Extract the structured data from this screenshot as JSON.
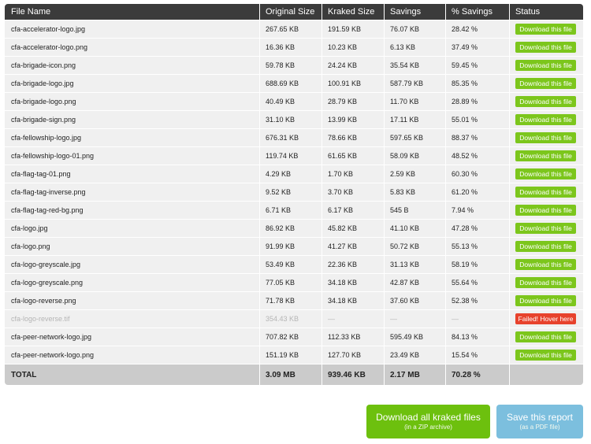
{
  "table": {
    "headers": {
      "name": "File Name",
      "original": "Original Size",
      "kraked": "Kraked Size",
      "savings": "Savings",
      "pct": "% Savings",
      "status": "Status"
    },
    "rows": [
      {
        "name": "cfa-accelerator-logo.jpg",
        "original": "267.65 KB",
        "kraked": "191.59 KB",
        "savings": "76.07 KB",
        "pct": "28.42 %",
        "status": "Download this file",
        "failed": false
      },
      {
        "name": "cfa-accelerator-logo.png",
        "original": "16.36 KB",
        "kraked": "10.23 KB",
        "savings": "6.13 KB",
        "pct": "37.49 %",
        "status": "Download this file",
        "failed": false
      },
      {
        "name": "cfa-brigade-icon.png",
        "original": "59.78 KB",
        "kraked": "24.24 KB",
        "savings": "35.54 KB",
        "pct": "59.45 %",
        "status": "Download this file",
        "failed": false
      },
      {
        "name": "cfa-brigade-logo.jpg",
        "original": "688.69 KB",
        "kraked": "100.91 KB",
        "savings": "587.79 KB",
        "pct": "85.35 %",
        "status": "Download this file",
        "failed": false
      },
      {
        "name": "cfa-brigade-logo.png",
        "original": "40.49 KB",
        "kraked": "28.79 KB",
        "savings": "11.70 KB",
        "pct": "28.89 %",
        "status": "Download this file",
        "failed": false
      },
      {
        "name": "cfa-brigade-sign.png",
        "original": "31.10 KB",
        "kraked": "13.99 KB",
        "savings": "17.11 KB",
        "pct": "55.01 %",
        "status": "Download this file",
        "failed": false
      },
      {
        "name": "cfa-fellowship-logo.jpg",
        "original": "676.31 KB",
        "kraked": "78.66 KB",
        "savings": "597.65 KB",
        "pct": "88.37 %",
        "status": "Download this file",
        "failed": false
      },
      {
        "name": "cfa-fellowship-logo-01.png",
        "original": "119.74 KB",
        "kraked": "61.65 KB",
        "savings": "58.09 KB",
        "pct": "48.52 %",
        "status": "Download this file",
        "failed": false
      },
      {
        "name": "cfa-flag-tag-01.png",
        "original": "4.29 KB",
        "kraked": "1.70 KB",
        "savings": "2.59 KB",
        "pct": "60.30 %",
        "status": "Download this file",
        "failed": false
      },
      {
        "name": "cfa-flag-tag-inverse.png",
        "original": "9.52 KB",
        "kraked": "3.70 KB",
        "savings": "5.83 KB",
        "pct": "61.20 %",
        "status": "Download this file",
        "failed": false
      },
      {
        "name": "cfa-flag-tag-red-bg.png",
        "original": "6.71 KB",
        "kraked": "6.17 KB",
        "savings": "545 B",
        "pct": "7.94 %",
        "status": "Download this file",
        "failed": false
      },
      {
        "name": "cfa-logo.jpg",
        "original": "86.92 KB",
        "kraked": "45.82 KB",
        "savings": "41.10 KB",
        "pct": "47.28 %",
        "status": "Download this file",
        "failed": false
      },
      {
        "name": "cfa-logo.png",
        "original": "91.99 KB",
        "kraked": "41.27 KB",
        "savings": "50.72 KB",
        "pct": "55.13 %",
        "status": "Download this file",
        "failed": false
      },
      {
        "name": "cfa-logo-greyscale.jpg",
        "original": "53.49 KB",
        "kraked": "22.36 KB",
        "savings": "31.13 KB",
        "pct": "58.19 %",
        "status": "Download this file",
        "failed": false
      },
      {
        "name": "cfa-logo-greyscale.png",
        "original": "77.05 KB",
        "kraked": "34.18 KB",
        "savings": "42.87 KB",
        "pct": "55.64 %",
        "status": "Download this file",
        "failed": false
      },
      {
        "name": "cfa-logo-reverse.png",
        "original": "71.78 KB",
        "kraked": "34.18 KB",
        "savings": "37.60 KB",
        "pct": "52.38 %",
        "status": "Download this file",
        "failed": false
      },
      {
        "name": "cfa-logo-reverse.tif",
        "original": "354.43 KB",
        "kraked": "—",
        "savings": "—",
        "pct": "—",
        "status": "Failed! Hover here",
        "failed": true
      },
      {
        "name": "cfa-peer-network-logo.jpg",
        "original": "707.82 KB",
        "kraked": "112.33 KB",
        "savings": "595.49 KB",
        "pct": "84.13 %",
        "status": "Download this file",
        "failed": false
      },
      {
        "name": "cfa-peer-network-logo.png",
        "original": "151.19 KB",
        "kraked": "127.70 KB",
        "savings": "23.49 KB",
        "pct": "15.54 %",
        "status": "Download this file",
        "failed": false
      }
    ],
    "total": {
      "label": "TOTAL",
      "original": "3.09 MB",
      "kraked": "939.46 KB",
      "savings": "2.17 MB",
      "pct": "70.28 %"
    }
  },
  "actions": {
    "zip": {
      "label": "Download all kraked files",
      "sub": "(in a ZIP archive)"
    },
    "pdf": {
      "label": "Save this report",
      "sub": "(as a PDF file)"
    }
  },
  "colors": {
    "header_bg": "#3b3b3b",
    "row_bg": "#f0f0f0",
    "total_bg": "#cbcbcb",
    "download_green": "#7cc61c",
    "failed_red": "#e7422c",
    "zip_button": "#6dc00e",
    "pdf_button": "#7cbfde"
  }
}
